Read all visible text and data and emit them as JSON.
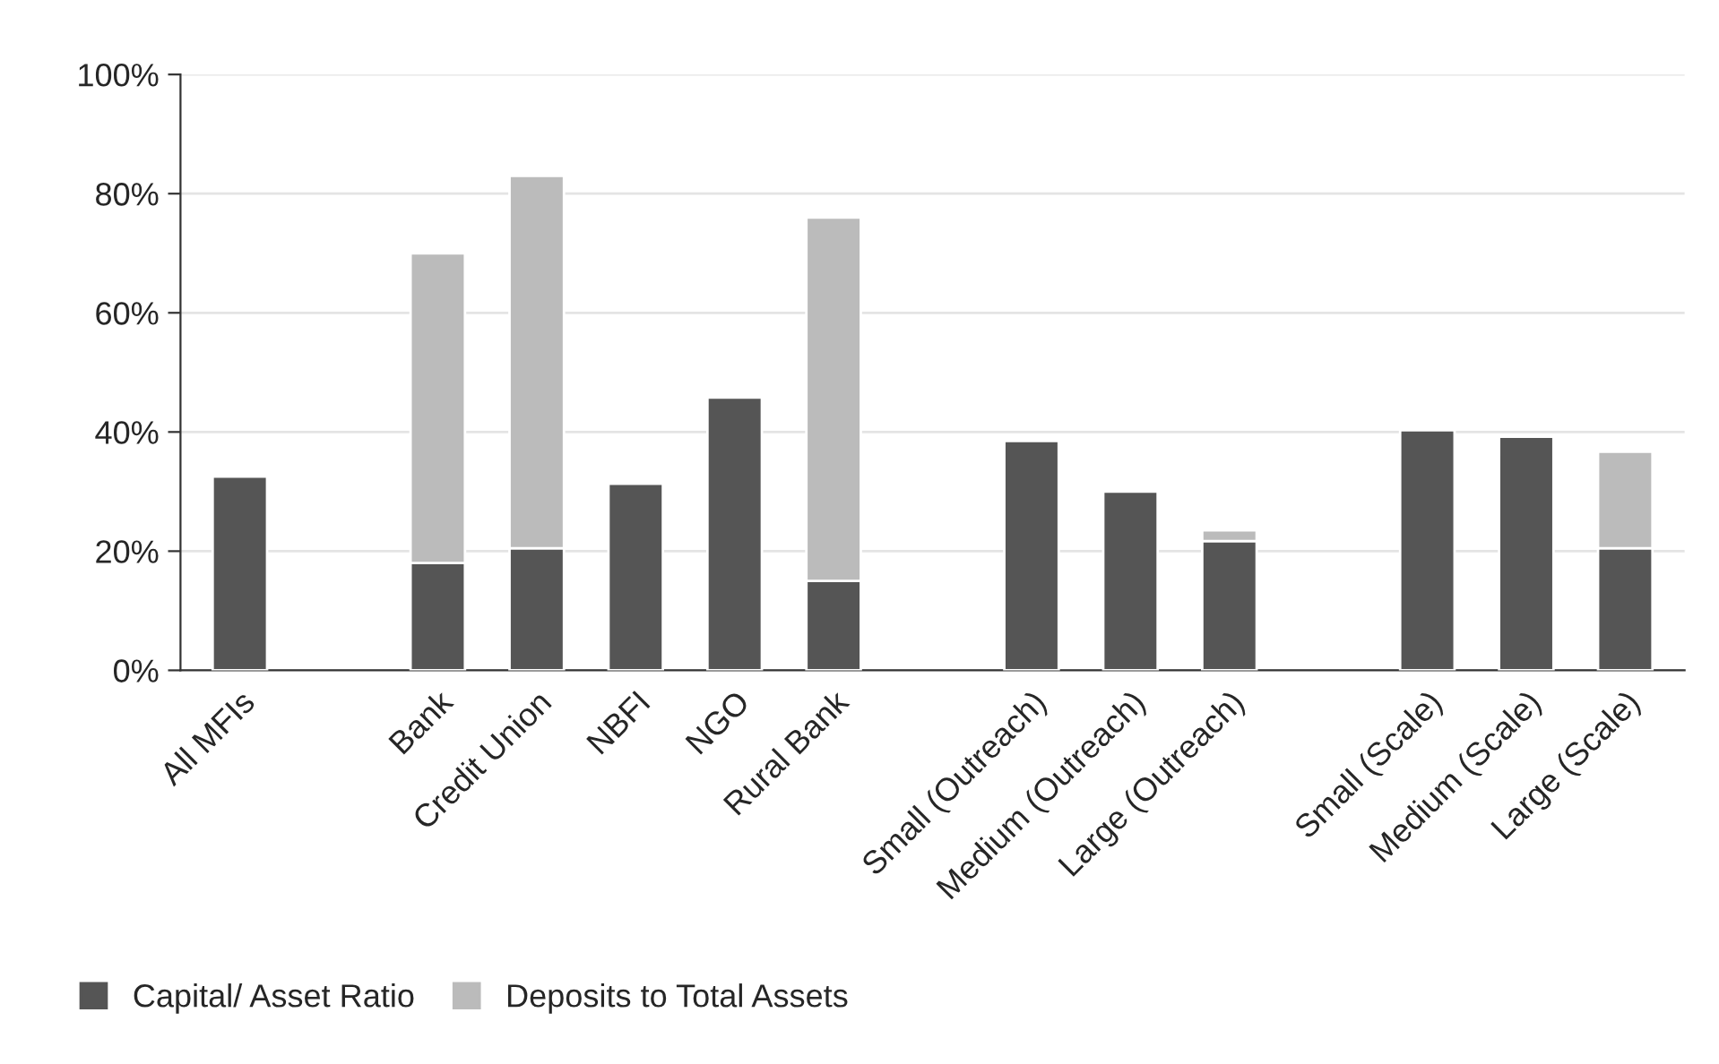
{
  "chart_data": {
    "type": "bar",
    "stacked": true,
    "categories": [
      "All MFIs",
      null,
      "Bank",
      "Credit Union",
      "NBFI",
      "NGO",
      "Rural Bank",
      null,
      "Small (Outreach)",
      "Medium (Outreach)",
      "Large (Outreach)",
      null,
      "Small (Scale)",
      "Medium (Scale)",
      "Large (Scale)"
    ],
    "series": [
      {
        "name": "Capital/ Asset Ratio",
        "color": "#555555",
        "values": [
          32.5,
          null,
          18,
          20.5,
          31.3,
          45.8,
          15,
          null,
          38.5,
          30,
          21.7,
          null,
          40.3,
          39.2,
          20.5
        ]
      },
      {
        "name": "Deposits to Total Assets",
        "color": "#bbbbbb",
        "values": [
          null,
          null,
          52,
          62.5,
          null,
          null,
          61,
          null,
          null,
          null,
          1.8,
          null,
          null,
          null,
          16.2
        ]
      }
    ],
    "ylim": [
      0,
      100
    ],
    "yticks": [
      {
        "value": 0,
        "label": "0%"
      },
      {
        "value": 20,
        "label": "20%"
      },
      {
        "value": 40,
        "label": "40%"
      },
      {
        "value": 60,
        "label": "60%"
      },
      {
        "value": 80,
        "label": "80%"
      },
      {
        "value": 100,
        "label": "100%"
      }
    ],
    "grid": "y",
    "legend": "bottom left"
  }
}
